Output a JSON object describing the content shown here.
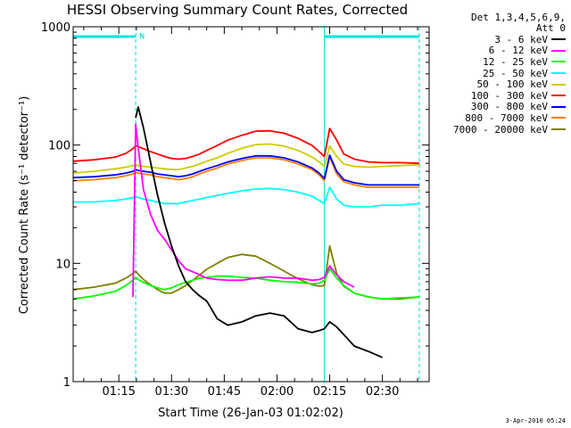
{
  "chart_data": {
    "type": "line",
    "title": "HESSI Observing Summary Count Rates, Corrected",
    "xlabel": "Start Time (26-Jan-03 01:02:02)",
    "ylabel": "Corrected Count Rate (s⁻¹ detector⁻¹)",
    "yscale": "log",
    "ylim": [
      1,
      1000
    ],
    "y_ticks": [
      "1",
      "10",
      "100",
      "1000"
    ],
    "x_ticks": [
      "01:15",
      "01:30",
      "01:45",
      "02:00",
      "02:15",
      "02:30"
    ],
    "x_tick_minutes": [
      75,
      90,
      105,
      120,
      135,
      150
    ],
    "xlim_minutes": [
      62.0,
      163.3
    ],
    "grid": false,
    "legend_placement": "outside-right",
    "legend_header": [
      "Det 1,3,4,5,6,9,",
      "Att 0"
    ],
    "flags": {
      "saa_bar_label": "N",
      "saa_intervals_minutes": [
        [
          62.0,
          79.8
        ],
        [
          133.5,
          160.5
        ]
      ],
      "night_boundaries_minutes": [
        79.8,
        133.5,
        160.5
      ]
    },
    "x_minutes": [
      62,
      68,
      74,
      77,
      79,
      79.8,
      80.5,
      82,
      84,
      86,
      88,
      90,
      92,
      94,
      96,
      98,
      100,
      103,
      106,
      110,
      114,
      118,
      122,
      126,
      130,
      132,
      133.5,
      135,
      137,
      139,
      142,
      146,
      150,
      155,
      160.5
    ],
    "series": [
      {
        "name": "3 - 6 keV",
        "color": "#000000",
        "values": [
          null,
          null,
          null,
          null,
          null,
          170,
          210,
          140,
          72,
          38,
          22,
          14,
          9.5,
          7,
          6,
          5.3,
          4.8,
          3.4,
          3,
          3.2,
          3.6,
          3.8,
          3.6,
          2.8,
          2.6,
          2.7,
          2.8,
          3.2,
          2.9,
          2.5,
          2,
          1.8,
          1.6,
          null,
          null
        ]
      },
      {
        "name": "6 - 12 keV",
        "color": "#ff00ff",
        "values": [
          null,
          null,
          null,
          null,
          5.2,
          150,
          95,
          42,
          26,
          19,
          16,
          13,
          10.5,
          9,
          8.5,
          8,
          7.5,
          7.3,
          7.2,
          7.2,
          7.5,
          7.7,
          7.5,
          7.5,
          7.2,
          7.3,
          7.6,
          9.5,
          8,
          7,
          6.3,
          null,
          null,
          null,
          null
        ]
      },
      {
        "name": "12 - 25 keV",
        "color": "#00ff00",
        "values": [
          5,
          5.3,
          5.8,
          6.5,
          7.2,
          7.6,
          7.3,
          6.9,
          6.5,
          6.2,
          6,
          6.2,
          6.6,
          6.9,
          7.2,
          7.5,
          7.6,
          7.8,
          7.8,
          7.6,
          7.5,
          7.2,
          7,
          6.9,
          6.7,
          6.8,
          7.2,
          9,
          7.5,
          6.5,
          5.6,
          5.2,
          5,
          5.1,
          5.2
        ]
      },
      {
        "name": "25 - 50 keV",
        "color": "#00ffff",
        "values": [
          33,
          33,
          34,
          35,
          36,
          37,
          36,
          35,
          34,
          33,
          32,
          32,
          32,
          33,
          34,
          35,
          36,
          37.5,
          39,
          41,
          42.5,
          43,
          42,
          40,
          37,
          34,
          32,
          44,
          35,
          31,
          30,
          30,
          31,
          31,
          32
        ]
      },
      {
        "name": "50 - 100 keV",
        "color": "#cccc00",
        "values": [
          58,
          60,
          63,
          65,
          67,
          68,
          67,
          66,
          65,
          64,
          63,
          62,
          62,
          64,
          66,
          69,
          73,
          78,
          85,
          94,
          101,
          102,
          98,
          90,
          79,
          72,
          66,
          98,
          80,
          69,
          66,
          65,
          66,
          67,
          68
        ]
      },
      {
        "name": "100 - 300 keV",
        "color": "#ff0000",
        "values": [
          73,
          75,
          79,
          85,
          93,
          99,
          97,
          93,
          88,
          84,
          80,
          77,
          76,
          77,
          80,
          84,
          90,
          99,
          110,
          121,
          131,
          132,
          126,
          114,
          99,
          88,
          80,
          138,
          110,
          84,
          76,
          72,
          71,
          71,
          70
        ]
      },
      {
        "name": "300 - 800 keV",
        "color": "#0000ff",
        "values": [
          53,
          54,
          56,
          58,
          60,
          62,
          61,
          60,
          59,
          57,
          56,
          55,
          54,
          55,
          57,
          60,
          63,
          67,
          72,
          77,
          81,
          81,
          78,
          72,
          64,
          58,
          52,
          82,
          60,
          51,
          48,
          46,
          46,
          46,
          46
        ]
      },
      {
        "name": "800 - 7000 keV",
        "color": "#ff8000",
        "values": [
          50,
          51,
          53,
          55,
          57,
          59,
          58,
          57,
          56,
          54,
          53,
          52,
          51,
          52,
          54,
          57,
          60,
          64,
          69,
          74,
          78,
          78,
          75,
          69,
          62,
          56,
          50,
          79,
          57,
          49,
          46,
          44,
          44,
          44,
          44
        ]
      },
      {
        "name": "7000 - 20000 keV",
        "color": "#808000",
        "values": [
          6,
          6.3,
          6.8,
          7.5,
          8.2,
          8.6,
          8.1,
          7.3,
          6.6,
          6,
          5.6,
          5.6,
          6,
          6.5,
          7.2,
          8,
          8.9,
          10,
          11.2,
          11.9,
          11.5,
          10,
          8.6,
          7.4,
          6.6,
          6.4,
          6.5,
          14,
          8.2,
          6.4,
          5.6,
          5.2,
          5,
          5,
          5.2
        ]
      }
    ]
  },
  "footer_text": "3-Apr-2010 05:24"
}
